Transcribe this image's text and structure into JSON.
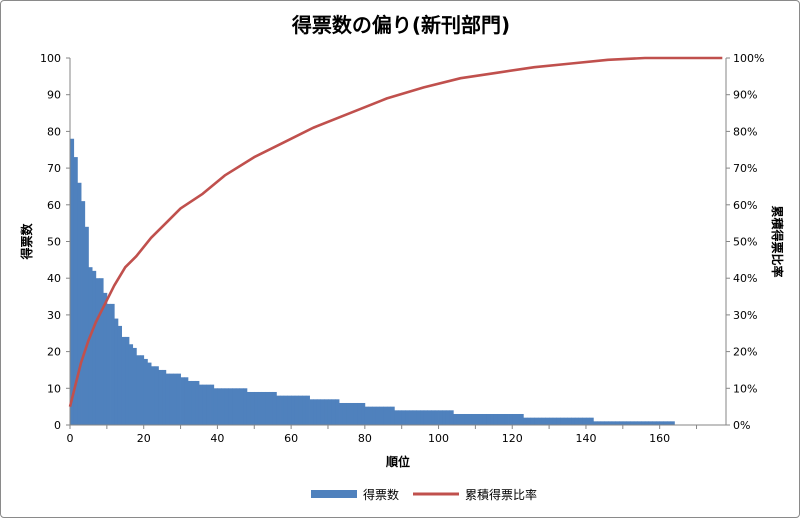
{
  "chart_data": {
    "type": "bar+line",
    "title": "得票数の偏り(新刊部門)",
    "xlabel": "順位",
    "ylabel": "得票数",
    "y2label": "累積得票比率",
    "xlim": [
      0,
      178
    ],
    "ylim": [
      0,
      100
    ],
    "y2lim": [
      0,
      1
    ],
    "x_ticks": [
      "0",
      "20",
      "40",
      "60",
      "80",
      "100",
      "120",
      "140",
      "160"
    ],
    "y_ticks": [
      "0",
      "10",
      "20",
      "30",
      "40",
      "50",
      "60",
      "70",
      "80",
      "90",
      "100"
    ],
    "y2_ticks": [
      "0%",
      "10%",
      "20%",
      "30%",
      "40%",
      "50%",
      "60%",
      "70%",
      "80%",
      "90%",
      "100%"
    ],
    "grid": false,
    "legend_position": "bottom",
    "colors": {
      "bars": "#4f81bd",
      "line": "#c0504d"
    },
    "series": [
      {
        "name": "得票数",
        "type": "bar",
        "values": [
          78,
          73,
          66,
          61,
          54,
          43,
          42,
          40,
          40,
          36,
          33,
          33,
          29,
          27,
          24,
          24,
          22,
          21,
          19,
          19,
          18,
          17,
          16,
          16,
          15,
          15,
          14,
          14,
          14,
          14,
          13,
          13,
          12,
          12,
          12,
          11,
          11,
          11,
          11,
          10,
          10,
          10,
          10,
          10,
          10,
          10,
          10,
          10,
          9,
          9,
          9,
          9,
          9,
          9,
          9,
          9,
          8,
          8,
          8,
          8,
          8,
          8,
          8,
          8,
          8,
          7,
          7,
          7,
          7,
          7,
          7,
          7,
          7,
          6,
          6,
          6,
          6,
          6,
          6,
          6,
          5,
          5,
          5,
          5,
          5,
          5,
          5,
          5,
          4,
          4,
          4,
          4,
          4,
          4,
          4,
          4,
          4,
          4,
          4,
          4,
          4,
          4,
          4,
          4,
          3,
          3,
          3,
          3,
          3,
          3,
          3,
          3,
          3,
          3,
          3,
          3,
          3,
          3,
          3,
          3,
          3,
          3,
          3,
          2,
          2,
          2,
          2,
          2,
          2,
          2,
          2,
          2,
          2,
          2,
          2,
          2,
          2,
          2,
          2,
          2,
          2,
          2,
          1,
          1,
          1,
          1,
          1,
          1,
          1,
          1,
          1,
          1,
          1,
          1,
          1,
          1,
          1,
          1,
          1,
          1,
          1,
          1,
          1,
          1
        ]
      },
      {
        "name": "累積得票比率",
        "type": "line",
        "x": [
          0,
          1,
          3,
          5,
          7,
          9,
          12,
          15,
          18,
          22,
          26,
          30,
          36,
          42,
          50,
          58,
          66,
          76,
          86,
          96,
          106,
          116,
          126,
          136,
          146,
          156,
          177
        ],
        "values": [
          0.05,
          0.09,
          0.17,
          0.23,
          0.28,
          0.32,
          0.38,
          0.43,
          0.46,
          0.51,
          0.55,
          0.59,
          0.63,
          0.68,
          0.73,
          0.77,
          0.81,
          0.85,
          0.89,
          0.92,
          0.945,
          0.96,
          0.975,
          0.985,
          0.995,
          1.0,
          1.0
        ]
      }
    ]
  }
}
